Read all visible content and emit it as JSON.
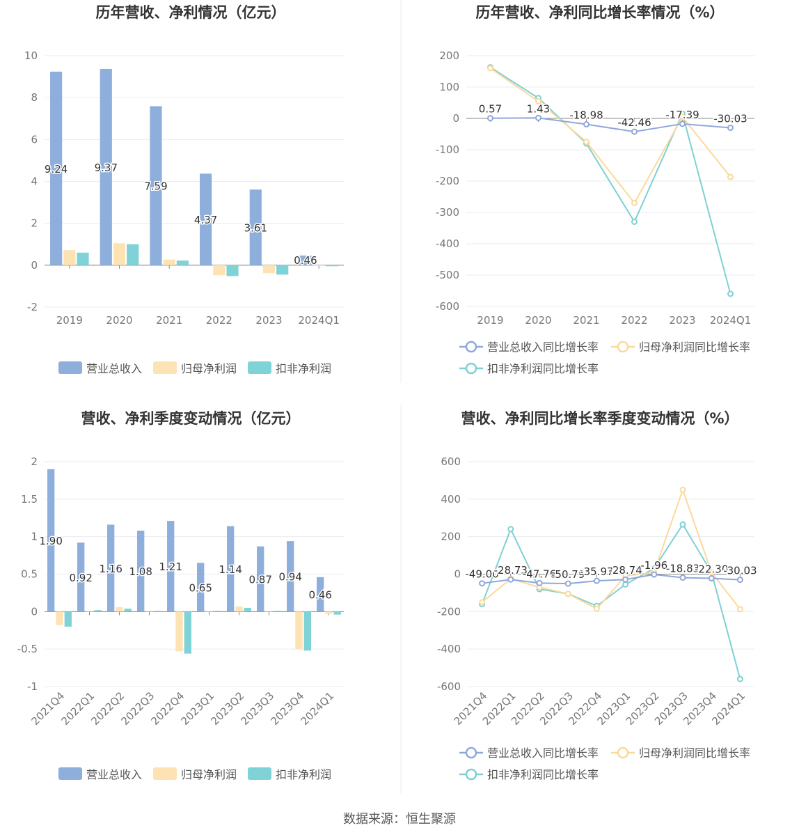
{
  "colors": {
    "revenue": "#8eaedc",
    "net_profit": "#fde3b4",
    "deducted_profit": "#7fd3d6",
    "revenue_line": "#8fa8da",
    "net_profit_line": "#fbd99a",
    "deducted_line": "#7fd0d3",
    "grid": "#e9ebf2",
    "axis_text": "#777777",
    "title": "#333333"
  },
  "source_text": "数据来源：恒生聚源",
  "chart_data": [
    {
      "type": "bar",
      "title": "历年营收、净利情况（亿元）",
      "categories": [
        "2019",
        "2020",
        "2021",
        "2022",
        "2023",
        "2024Q1"
      ],
      "ylim": [
        -2,
        10
      ],
      "yticks": [
        "10",
        "8",
        "6",
        "4",
        "2",
        "0",
        "-2"
      ],
      "series": [
        {
          "name": "营业总收入",
          "values": [
            9.24,
            9.37,
            7.59,
            4.37,
            3.61,
            0.46
          ]
        },
        {
          "name": "归母净利润",
          "values": [
            0.72,
            1.05,
            0.27,
            -0.48,
            -0.38,
            -0.03
          ]
        },
        {
          "name": "扣非净利润",
          "values": [
            0.6,
            1.0,
            0.22,
            -0.52,
            -0.45,
            -0.05
          ]
        }
      ],
      "data_labels": [
        "9.24",
        "9.37",
        "7.59",
        "4.37",
        "3.61",
        "0.46"
      ],
      "grid": true,
      "legend": "bottom"
    },
    {
      "type": "line",
      "title": "历年营收、净利同比增长率情况（%）",
      "categories": [
        "2019",
        "2020",
        "2021",
        "2022",
        "2023",
        "2024Q1"
      ],
      "ylim": [
        -600,
        200
      ],
      "yticks": [
        "200",
        "100",
        "0",
        "-100",
        "-200",
        "-300",
        "-400",
        "-500",
        "-600"
      ],
      "series": [
        {
          "name": "营业总收入同比增长率",
          "values": [
            0.57,
            1.43,
            -18.98,
            -42.46,
            -17.39,
            -30.03
          ]
        },
        {
          "name": "归母净利润同比增长率",
          "values": [
            160,
            55,
            -75,
            -270,
            5,
            -187
          ]
        },
        {
          "name": "扣非净利润同比增长率",
          "values": [
            163,
            65,
            -80,
            -330,
            15,
            -560
          ]
        }
      ],
      "data_labels": [
        "0.57",
        "1.43",
        "-18.98",
        "-42.46",
        "-17.39",
        "-30.03"
      ],
      "grid": true,
      "legend": "bottom"
    },
    {
      "type": "bar",
      "title": "营收、净利季度变动情况（亿元）",
      "categories": [
        "2021Q4",
        "2022Q1",
        "2022Q2",
        "2022Q3",
        "2022Q4",
        "2023Q1",
        "2023Q2",
        "2023Q3",
        "2023Q4",
        "2024Q1"
      ],
      "ylim": [
        -1,
        2
      ],
      "yticks": [
        "2",
        "1.5",
        "1",
        "0.5",
        "0",
        "-0.5",
        "-1"
      ],
      "series": [
        {
          "name": "营业总收入",
          "values": [
            1.9,
            0.92,
            1.16,
            1.08,
            1.21,
            0.65,
            1.14,
            0.87,
            0.94,
            0.46
          ]
        },
        {
          "name": "归母净利润",
          "values": [
            -0.18,
            0.01,
            0.06,
            0.01,
            -0.53,
            0.01,
            0.07,
            0.01,
            -0.5,
            -0.03
          ]
        },
        {
          "name": "扣非净利润",
          "values": [
            -0.2,
            0.02,
            0.04,
            0.01,
            -0.56,
            0.01,
            0.05,
            0.01,
            -0.52,
            -0.04
          ]
        }
      ],
      "data_labels": [
        "1.90",
        "0.92",
        "1.16",
        "1.08",
        "1.21",
        "0.65",
        "1.14",
        "0.87",
        "0.94",
        "0.46"
      ],
      "grid": true,
      "legend": "bottom"
    },
    {
      "type": "line",
      "title": "营收、净利同比增长率季度变动情况（%）",
      "categories": [
        "2021Q4",
        "2022Q1",
        "2022Q2",
        "2022Q3",
        "2022Q4",
        "2023Q1",
        "2023Q2",
        "2023Q3",
        "2023Q4",
        "2024Q1"
      ],
      "ylim": [
        -600,
        600
      ],
      "yticks": [
        "600",
        "400",
        "200",
        "0",
        "-200",
        "-400",
        "-600"
      ],
      "series": [
        {
          "name": "营业总收入同比增长率",
          "values": [
            -49.0,
            -28.73,
            -47.76,
            -50.79,
            -35.97,
            -28.74,
            -1.96,
            -18.83,
            -22.3,
            -30.03
          ]
        },
        {
          "name": "归母净利润同比增长率",
          "values": [
            -150,
            -25,
            -70,
            -105,
            -185,
            -10,
            10,
            450,
            10,
            -187
          ]
        },
        {
          "name": "扣非净利润同比增长率",
          "values": [
            -160,
            240,
            -80,
            -105,
            -170,
            -55,
            30,
            265,
            10,
            -560
          ]
        }
      ],
      "data_labels": [
        "-49.00",
        "-28.73",
        "-47.76",
        "-50.79",
        "-35.97",
        "-28.74",
        "-1.96",
        "-18.83",
        "-22.30",
        "-30.03"
      ],
      "grid": true,
      "legend": "bottom"
    }
  ]
}
